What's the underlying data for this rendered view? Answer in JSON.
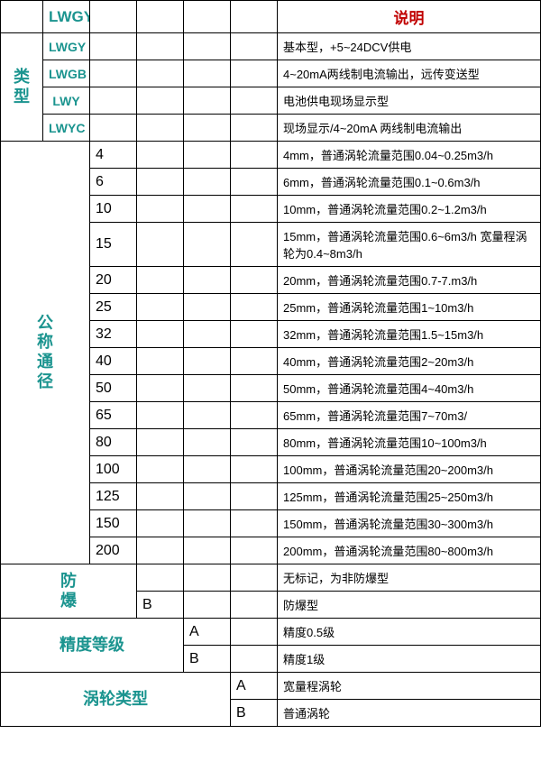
{
  "table": {
    "header": {
      "lwgy": "LWGY",
      "shuoming": "说明"
    },
    "category_type": {
      "label": "类型",
      "label_chars": [
        "类",
        "型"
      ],
      "rows": [
        {
          "code": "LWGY",
          "desc": "基本型，+5~24DCV供电"
        },
        {
          "code": "LWGB",
          "desc": "4~20mA两线制电流输出，远传变送型"
        },
        {
          "code": "LWY",
          "desc": "电池供电现场显示型"
        },
        {
          "code": "LWYC",
          "desc": "现场显示/4~20mA 两线制电流输出"
        }
      ]
    },
    "category_dn": {
      "label": "公称通径",
      "label_chars": [
        "公",
        "称",
        "通",
        "径"
      ],
      "rows": [
        {
          "code": "4",
          "desc": "4mm，普通涡轮流量范围0.04~0.25m3/h"
        },
        {
          "code": "6",
          "desc": "6mm，普通涡轮流量范围0.1~0.6m3/h"
        },
        {
          "code": "10",
          "desc": "10mm，普通涡轮流量范围0.2~1.2m3/h"
        },
        {
          "code": "15",
          "desc": "15mm，普通涡轮流量范围0.6~6m3/h 宽量程涡轮为0.4~8m3/h"
        },
        {
          "code": "20",
          "desc": "20mm，普通涡轮流量范围0.7-7.m3/h"
        },
        {
          "code": "25",
          "desc": "25mm，普通涡轮流量范围1~10m3/h"
        },
        {
          "code": "32",
          "desc": "32mm，普通涡轮流量范围1.5~15m3/h"
        },
        {
          "code": "40",
          "desc": "40mm，普通涡轮流量范围2~20m3/h"
        },
        {
          "code": "50",
          "desc": "50mm，普通涡轮流量范围4~40m3/h"
        },
        {
          "code": "65",
          "desc": "65mm，普通涡轮流量范围7~70m3/"
        },
        {
          "code": "80",
          "desc": "80mm，普通涡轮流量范围10~100m3/h"
        },
        {
          "code": "100",
          "desc": "100mm，普通涡轮流量范围20~200m3/h"
        },
        {
          "code": "125",
          "desc": "125mm，普通涡轮流量范围25~250m3/h"
        },
        {
          "code": "150",
          "desc": "150mm，普通涡轮流量范围30~300m3/h"
        },
        {
          "code": "200",
          "desc": "200mm，普通涡轮流量范围80~800m3/h"
        }
      ]
    },
    "category_ex": {
      "label": "防爆",
      "label_chars": [
        "防",
        "爆"
      ],
      "rows": [
        {
          "code": "",
          "desc": "无标记，为非防爆型"
        },
        {
          "code": "B",
          "desc": "防爆型"
        }
      ]
    },
    "category_acc": {
      "label": "精度等级",
      "rows": [
        {
          "code": "A",
          "desc": "精度0.5级"
        },
        {
          "code": "B",
          "desc": "精度1级"
        }
      ]
    },
    "category_turb": {
      "label": "涡轮类型",
      "rows": [
        {
          "code": "A",
          "desc": "宽量程涡轮"
        },
        {
          "code": "B",
          "desc": "普通涡轮"
        }
      ]
    }
  },
  "colors": {
    "teal": "#1b948f",
    "red": "#c00000",
    "border": "#000000",
    "bg": "#ffffff"
  }
}
